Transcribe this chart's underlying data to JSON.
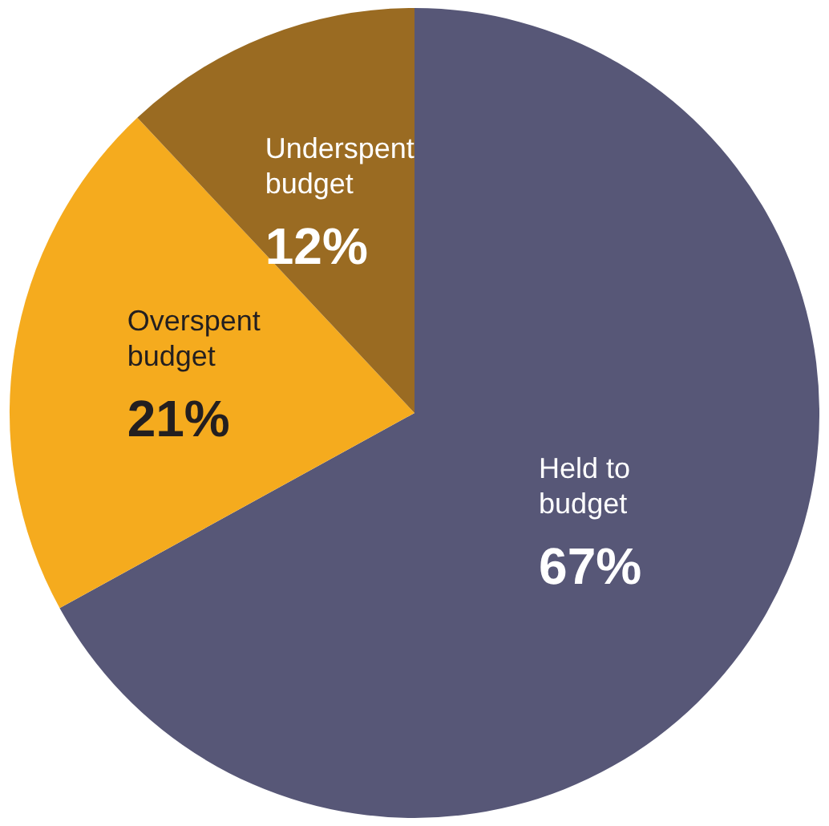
{
  "chart_data": {
    "type": "pie",
    "categories": [
      "Held to budget",
      "Overspent budget",
      "Underspent budget"
    ],
    "values": [
      67,
      21,
      12
    ],
    "colors": [
      "#575777",
      "#f5ab1e",
      "#9a6b22"
    ],
    "value_labels": [
      "67%",
      "21%",
      "12%"
    ],
    "legend": false
  }
}
